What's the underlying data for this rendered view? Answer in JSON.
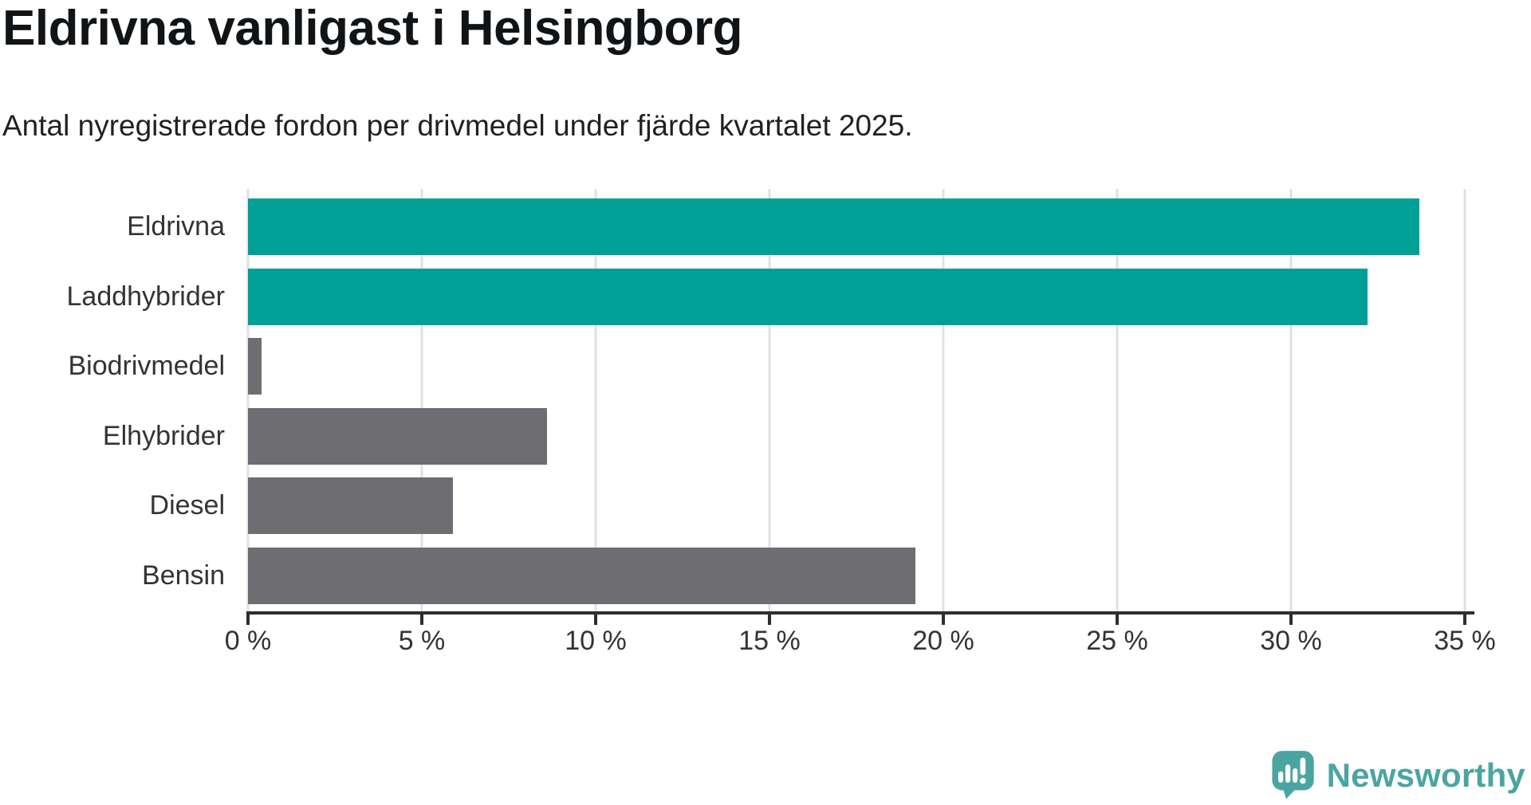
{
  "title": "Eldrivna vanligast i Helsingborg",
  "subtitle": "Antal nyregistrerade fordon per drivmedel under fjärde kvartalet 2025.",
  "colors": {
    "highlight_bar": "#00a096",
    "default_bar": "#6d6d72",
    "gridline": "#e0e0e0",
    "axis": "#2e2e31",
    "tick_text": "#333333",
    "title_text": "#111417"
  },
  "branding": {
    "logo_text": "Newsworthy",
    "logo_color": "#4aa5a2"
  },
  "chart_data": {
    "type": "bar",
    "orientation": "horizontal",
    "title": "Eldrivna vanligast i Helsingborg",
    "subtitle": "Antal nyregistrerade fordon per drivmedel under fjärde kvartalet 2025.",
    "categories": [
      "Eldrivna",
      "Laddhybrider",
      "Biodrivmedel",
      "Elhybrider",
      "Diesel",
      "Bensin"
    ],
    "values": [
      33.7,
      32.2,
      0.4,
      8.6,
      5.9,
      19.2
    ],
    "unit": "%",
    "bar_colors": [
      "#00a096",
      "#00a096",
      "#6d6d72",
      "#6d6d72",
      "#6d6d72",
      "#6d6d72"
    ],
    "xlabel": "",
    "ylabel": "",
    "xlim": [
      0,
      35
    ],
    "x_tick_values": [
      0,
      5,
      10,
      15,
      20,
      25,
      30,
      35
    ],
    "x_tick_labels": [
      "0 %",
      "5 %",
      "10 %",
      "15 %",
      "20 %",
      "25 %",
      "30 %",
      "35 %"
    ],
    "grid": true,
    "legend": false
  }
}
